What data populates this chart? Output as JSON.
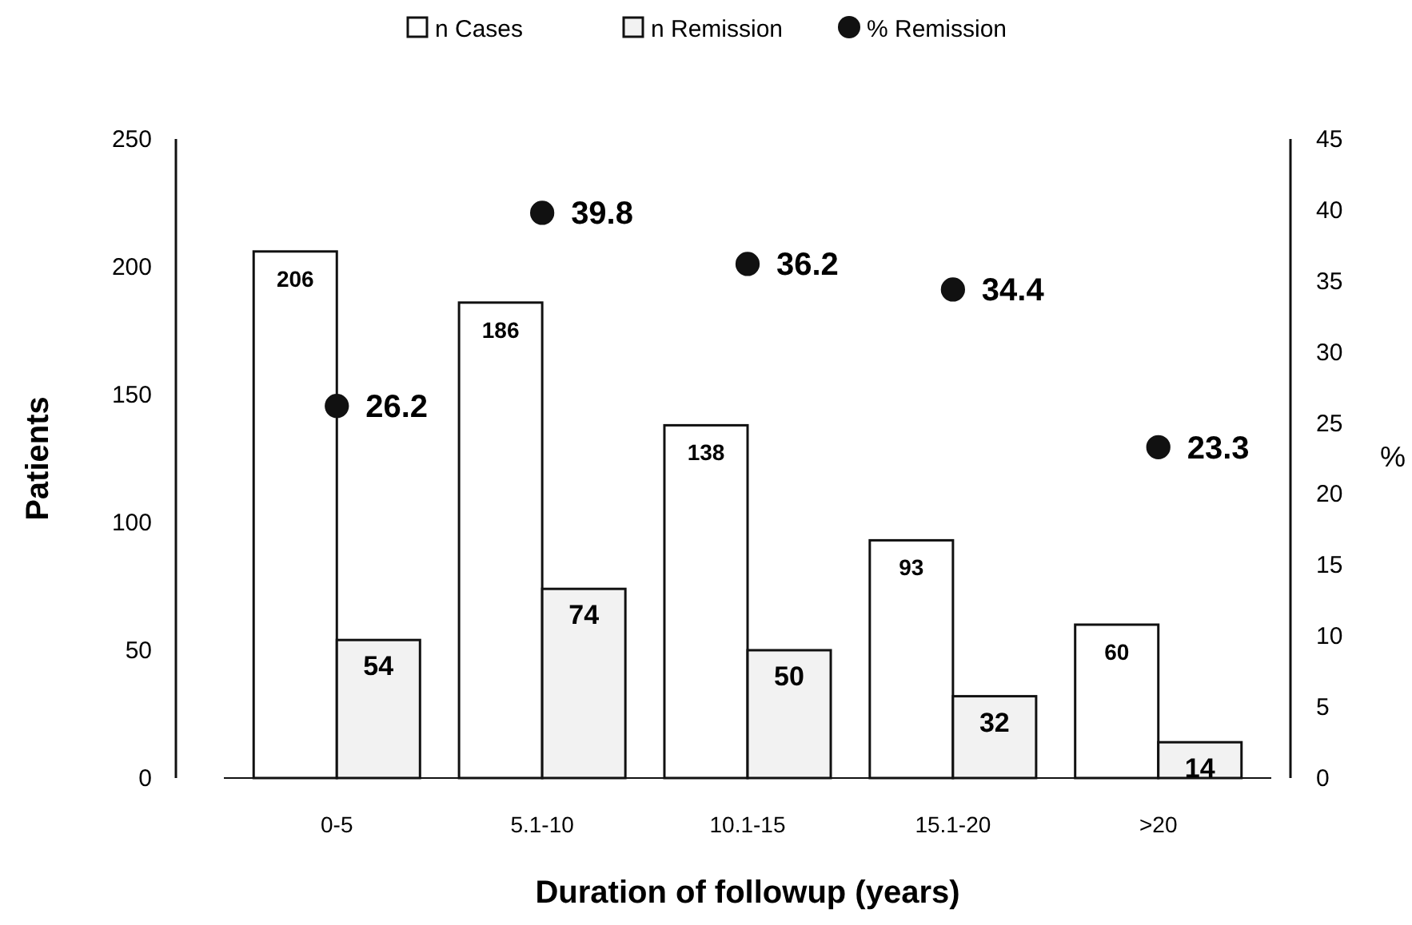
{
  "chart_data": {
    "type": "bar",
    "xlabel": "Duration of followup (years)",
    "ylabel": "Patients",
    "y2label": "%",
    "categories": [
      "0-5",
      "5.1-10",
      "10.1-15",
      "15.1-20",
      ">20"
    ],
    "series": [
      {
        "name": "n Cases",
        "color": "#ffffff",
        "values": [
          206,
          186,
          138,
          93,
          60
        ]
      },
      {
        "name": "n Remission",
        "color": "#f2f2f2",
        "values": [
          54,
          74,
          50,
          32,
          14
        ]
      },
      {
        "name": "% Remission",
        "type": "scatter",
        "axis": "y2",
        "color": "#111111",
        "values": [
          26.2,
          39.8,
          36.2,
          34.4,
          23.3
        ]
      }
    ],
    "ylim": [
      0,
      250
    ],
    "yticks": [
      0,
      50,
      100,
      150,
      200,
      250
    ],
    "y2lim": [
      0,
      45
    ],
    "y2ticks": [
      0,
      5,
      10,
      15,
      20,
      25,
      30,
      35,
      40,
      45
    ],
    "data_labels": true,
    "legend": "top",
    "grid": false,
    "marker": "circle"
  }
}
